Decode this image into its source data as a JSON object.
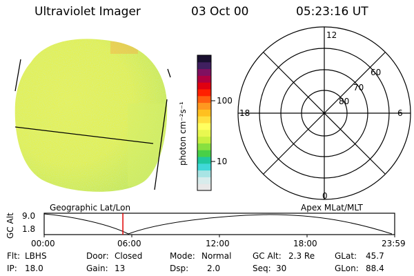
{
  "header": {
    "instrument": "Ultraviolet Imager",
    "date": "03 Oct 00",
    "time": "05:23:16 UT"
  },
  "colorbar": {
    "unit_label": "photon cm⁻²s⁻¹",
    "ticks": [
      "100",
      "10"
    ],
    "colors": [
      "#e8e8e8",
      "#d8ecec",
      "#a8e4e4",
      "#40d8d8",
      "#20c8a0",
      "#48d048",
      "#88e040",
      "#c8f040",
      "#e8f850",
      "#ffff60",
      "#ffe040",
      "#ffc020",
      "#ff9820",
      "#ff6010",
      "#ff2000",
      "#e00010",
      "#b00040",
      "#801060",
      "#402060",
      "#1a1030"
    ]
  },
  "polar_grid": {
    "mlt_labels": {
      "top": "12",
      "left": "18",
      "right": "6",
      "bottom": "0"
    },
    "lat_labels": [
      "60",
      "70",
      "80"
    ]
  },
  "timeline": {
    "left_label": "Geographic Lat/Lon",
    "right_label": "Apex MLat/MLT",
    "y_title": "GC Alt",
    "y_top": "9.0",
    "y_bottom": "1.8",
    "x_ticks": [
      "00:00",
      "06:00",
      "12:00",
      "18:00",
      "23:59"
    ],
    "cursor_time_hours": 5.39
  },
  "info": {
    "filter": {
      "label": "Flt:",
      "value": "LBHS"
    },
    "ip": {
      "label": "IP:",
      "value": "18.0"
    },
    "door": {
      "label": "Door:",
      "value": "Closed"
    },
    "gain": {
      "label": "Gain:",
      "value": "13"
    },
    "mode": {
      "label": "Mode:",
      "value": "Normal"
    },
    "dsp": {
      "label": "Dsp:",
      "value": "2.0"
    },
    "gc_alt": {
      "label": "GC Alt:",
      "value": "2.3 Re"
    },
    "seq": {
      "label": "Seq:",
      "value": "30"
    },
    "glat": {
      "label": "GLat:",
      "value": "45.7"
    },
    "glon": {
      "label": "GLon:",
      "value": "88.4"
    }
  }
}
